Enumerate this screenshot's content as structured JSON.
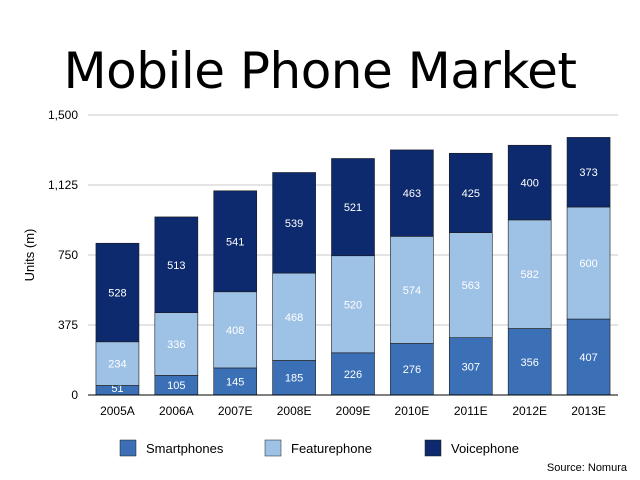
{
  "chart_data": {
    "type": "bar",
    "stacked": true,
    "title": "Mobile Phone Market",
    "ylabel": "Units (m)",
    "xlabel": "",
    "ylim": [
      0,
      1500
    ],
    "yticks": [
      0,
      375,
      750,
      1125,
      1500
    ],
    "ytick_labels": [
      "0",
      "375",
      "750",
      "1,125",
      "1,500"
    ],
    "categories": [
      "2005A",
      "2006A",
      "2007E",
      "2008E",
      "2009E",
      "2010E",
      "2011E",
      "2012E",
      "2013E"
    ],
    "series": [
      {
        "name": "Smartphones",
        "color": "#3b6fb6",
        "values": [
          51,
          105,
          145,
          185,
          226,
          276,
          307,
          356,
          407
        ]
      },
      {
        "name": "Featurephone",
        "color": "#9ec1e6",
        "values": [
          234,
          336,
          408,
          468,
          520,
          574,
          563,
          582,
          600
        ]
      },
      {
        "name": "Voicephone",
        "color": "#0d2a6e",
        "values": [
          528,
          513,
          541,
          539,
          521,
          463,
          425,
          400,
          373
        ]
      }
    ],
    "grid": true,
    "legend_position": "bottom",
    "source": "Source: Nomura"
  }
}
